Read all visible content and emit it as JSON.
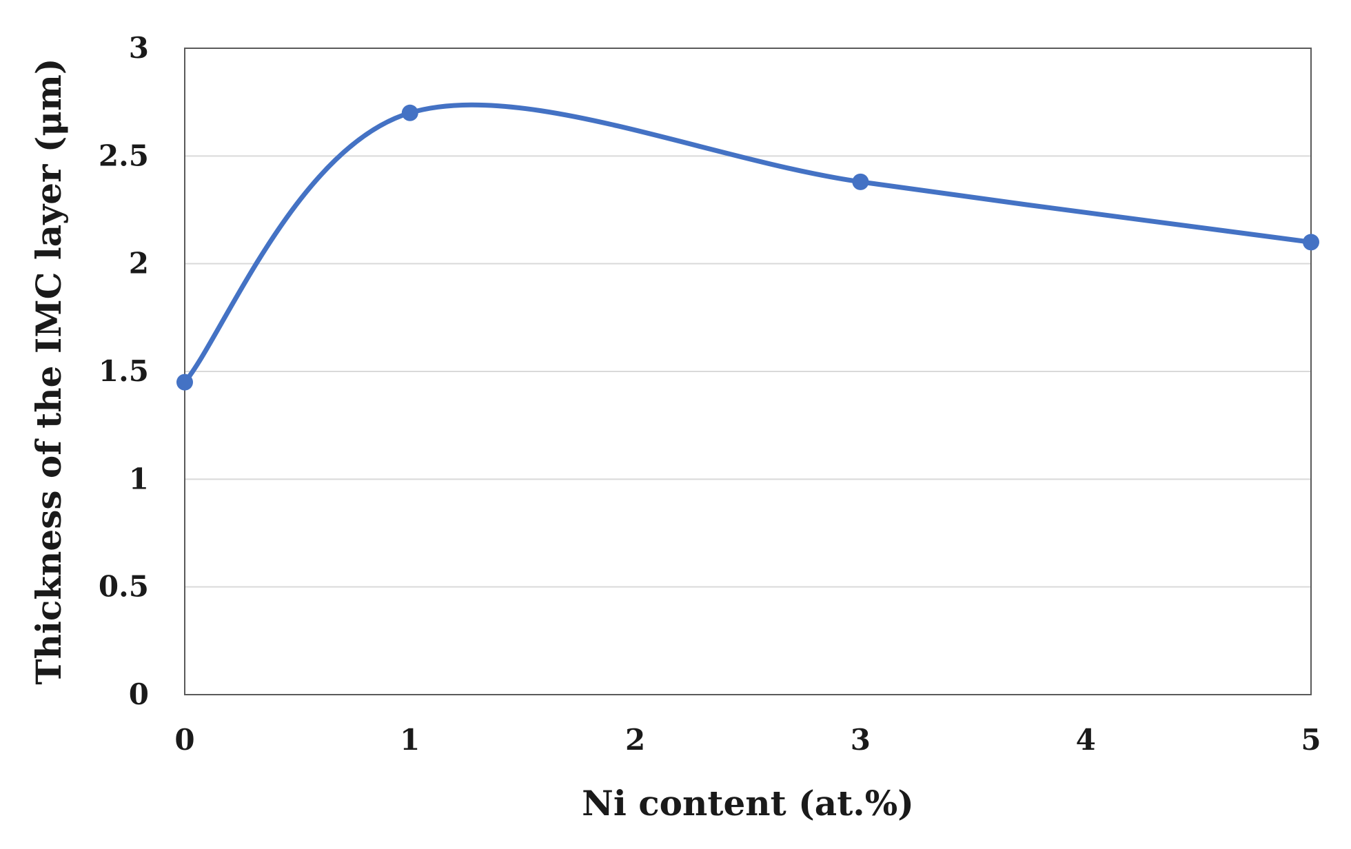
{
  "chart_data": {
    "type": "line",
    "smoothed": true,
    "title": "",
    "xlabel": "Ni content (at.%)",
    "ylabel": "Thickness of the IMC layer (μm)",
    "xlim": [
      0,
      5
    ],
    "ylim": [
      0,
      3
    ],
    "x_ticks": [
      "0",
      "1",
      "2",
      "3",
      "4",
      "5"
    ],
    "y_ticks": [
      "0",
      "0.5",
      "1",
      "1.5",
      "2",
      "2.5",
      "3"
    ],
    "grid": "horizontal",
    "legend": "none",
    "series": [
      {
        "x": [
          0,
          1,
          3,
          5
        ],
        "y": [
          1.45,
          2.7,
          2.38,
          2.1
        ],
        "color": "#4472C4",
        "markers": true
      }
    ]
  }
}
